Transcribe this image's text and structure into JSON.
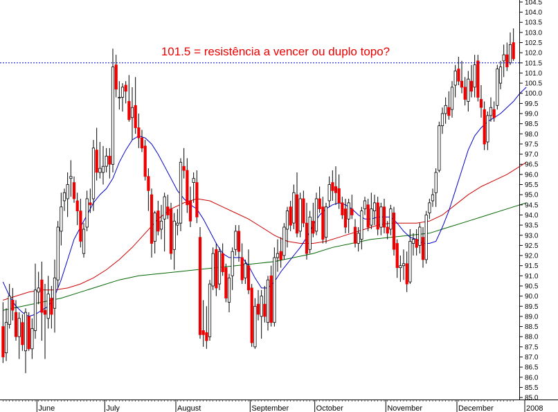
{
  "chart_data": {
    "type": "candlestick",
    "annotation": "101.5 = resistência a vencer ou duplo topo?",
    "resistance_level": 101.5,
    "ylim": [
      84.9,
      104.6
    ],
    "y_ticks": [
      85.0,
      85.5,
      86.0,
      86.5,
      87.0,
      87.5,
      88.0,
      88.5,
      89.0,
      89.5,
      90.0,
      90.5,
      91.0,
      91.5,
      92.0,
      92.5,
      93.0,
      93.5,
      94.0,
      94.5,
      95.0,
      95.5,
      96.0,
      96.5,
      97.0,
      97.5,
      98.0,
      98.5,
      99.0,
      99.5,
      100.0,
      100.5,
      101.0,
      101.5,
      102.0,
      102.5,
      103.0,
      103.5,
      104.0,
      104.5
    ],
    "months": [
      "June",
      "July",
      "August",
      "September",
      "October",
      "November",
      "December",
      "2008"
    ],
    "month_bar_index": [
      11,
      32,
      54,
      77,
      97,
      119,
      141,
      162
    ],
    "colors": {
      "up_candle": "#ffffff",
      "down_candle": "#ee0000",
      "wick": "#000000",
      "ma_short": "#0000cc",
      "ma_medium": "#cc0000",
      "ma_long": "#006600",
      "resistance_line": "#0000cc",
      "annotation": "#ee0000"
    },
    "candles": [
      [
        88.5,
        89.7,
        86.7,
        87.0
      ],
      [
        87.2,
        89.4,
        86.8,
        88.7
      ],
      [
        88.6,
        90.6,
        88.4,
        90.0
      ],
      [
        89.8,
        90.4,
        88.8,
        89.3
      ],
      [
        89.2,
        89.8,
        87.8,
        88.0
      ],
      [
        88.0,
        89.2,
        86.9,
        88.9
      ],
      [
        88.7,
        89.1,
        87.3,
        87.6
      ],
      [
        87.3,
        89.4,
        86.2,
        89.2
      ],
      [
        89.0,
        89.2,
        87.3,
        87.4
      ],
      [
        87.4,
        88.9,
        86.9,
        88.4
      ],
      [
        88.3,
        91.6,
        87.9,
        90.3
      ],
      [
        90.2,
        91.2,
        89.6,
        90.4
      ],
      [
        90.8,
        91.7,
        87.8,
        89.2
      ],
      [
        89.3,
        90.6,
        86.9,
        89.1
      ],
      [
        88.9,
        91.0,
        88.4,
        90.1
      ],
      [
        89.9,
        90.5,
        88.4,
        89.1
      ],
      [
        89.4,
        91.8,
        88.2,
        90.9
      ],
      [
        90.8,
        93.7,
        90.4,
        93.4
      ],
      [
        93.2,
        95.1,
        92.5,
        94.4
      ],
      [
        94.7,
        95.3,
        94.2,
        95.1
      ],
      [
        94.8,
        96.1,
        93.9,
        95.5
      ],
      [
        95.8,
        96.7,
        94.9,
        95.9
      ],
      [
        95.6,
        95.9,
        94.6,
        94.8
      ],
      [
        94.7,
        95.1,
        93.5,
        94.2
      ],
      [
        94.2,
        94.8,
        92.4,
        92.7
      ],
      [
        92.1,
        93.6,
        91.9,
        93.3
      ],
      [
        93.4,
        95.2,
        93.2,
        94.8
      ],
      [
        94.6,
        95.3,
        94.1,
        94.5
      ],
      [
        94.8,
        97.7,
        94.2,
        97.3
      ],
      [
        97.2,
        98.3,
        95.7,
        96.1
      ],
      [
        96.1,
        97.6,
        95.8,
        96.3
      ],
      [
        96.1,
        97.4,
        95.5,
        96.4
      ],
      [
        96.4,
        97.3,
        96.1,
        96.9
      ],
      [
        96.9,
        97.3,
        95.8,
        96.5
      ],
      [
        96.5,
        102.2,
        96.1,
        101.3
      ],
      [
        101.4,
        101.9,
        99.8,
        100.2
      ],
      [
        99.8,
        100.6,
        99.2,
        99.8
      ],
      [
        99.8,
        100.5,
        99.1,
        100.3
      ],
      [
        100.4,
        100.6,
        99.5,
        100.1
      ],
      [
        99.6,
        100.9,
        98.6,
        98.7
      ],
      [
        98.8,
        100.3,
        97.7,
        99.3
      ],
      [
        99.4,
        100.8,
        98.0,
        98.3
      ],
      [
        98.3,
        99.0,
        97.3,
        97.8
      ],
      [
        97.8,
        98.2,
        97.1,
        97.3
      ],
      [
        97.4,
        97.7,
        95.7,
        95.9
      ],
      [
        95.9,
        96.3,
        94.2,
        95.2
      ],
      [
        95.0,
        95.3,
        91.9,
        92.6
      ],
      [
        92.7,
        94.2,
        92.1,
        94.1
      ],
      [
        94.2,
        94.7,
        93.0,
        93.2
      ],
      [
        93.3,
        94.5,
        92.8,
        93.7
      ],
      [
        93.8,
        95.1,
        92.2,
        94.9
      ],
      [
        94.4,
        95.0,
        93.8,
        94.0
      ],
      [
        94.3,
        94.6,
        91.8,
        92.1
      ],
      [
        92.3,
        94.1,
        91.3,
        93.7
      ],
      [
        93.5,
        94.3,
        93.0,
        93.6
      ],
      [
        93.6,
        96.8,
        93.2,
        96.6
      ],
      [
        96.4,
        97.3,
        95.8,
        96.2
      ],
      [
        96.2,
        96.8,
        94.1,
        94.5
      ],
      [
        94.7,
        95.4,
        93.4,
        93.7
      ],
      [
        95.6,
        96.1,
        94.6,
        95.8
      ],
      [
        95.6,
        96.2,
        93.6,
        93.9
      ],
      [
        92.9,
        93.4,
        87.9,
        88.1
      ],
      [
        88.3,
        89.8,
        87.5,
        88.1
      ],
      [
        88.2,
        89.5,
        87.4,
        87.8
      ],
      [
        88.0,
        90.8,
        87.8,
        90.6
      ],
      [
        90.5,
        92.4,
        90.3,
        92.1
      ],
      [
        92.3,
        92.6,
        90.0,
        90.4
      ],
      [
        90.6,
        92.4,
        90.3,
        92.2
      ],
      [
        92.1,
        92.6,
        91.0,
        91.2
      ],
      [
        91.4,
        91.6,
        89.7,
        89.9
      ],
      [
        89.7,
        91.1,
        89.2,
        90.9
      ],
      [
        91.0,
        92.4,
        90.3,
        92.2
      ],
      [
        92.3,
        93.5,
        92.0,
        93.2
      ],
      [
        93.2,
        93.5,
        91.7,
        92.2
      ],
      [
        91.9,
        92.6,
        90.6,
        90.8
      ],
      [
        90.9,
        91.8,
        90.6,
        91.6
      ],
      [
        91.5,
        92.3,
        90.1,
        90.3
      ],
      [
        90.4,
        90.6,
        87.5,
        87.7
      ],
      [
        87.5,
        89.9,
        87.4,
        89.5
      ],
      [
        89.6,
        90.3,
        88.8,
        89.1
      ],
      [
        89.0,
        90.3,
        87.9,
        90.0
      ],
      [
        89.6,
        90.5,
        88.7,
        89.0
      ],
      [
        88.7,
        91.0,
        88.3,
        90.8
      ],
      [
        91.0,
        91.5,
        88.5,
        88.7
      ],
      [
        88.7,
        92.4,
        88.5,
        91.9
      ],
      [
        91.9,
        92.8,
        91.2,
        92.1
      ],
      [
        92.2,
        92.9,
        91.4,
        91.8
      ],
      [
        92.0,
        93.6,
        91.8,
        93.4
      ],
      [
        93.3,
        94.4,
        92.4,
        94.2
      ],
      [
        94.4,
        94.7,
        93.2,
        93.5
      ],
      [
        93.6,
        95.5,
        93.3,
        95.1
      ],
      [
        95.0,
        96.1,
        92.9,
        93.1
      ],
      [
        93.2,
        95.1,
        92.9,
        94.8
      ],
      [
        94.8,
        95.2,
        93.4,
        93.6
      ],
      [
        93.6,
        94.6,
        91.8,
        92.1
      ],
      [
        92.3,
        94.2,
        92.1,
        93.9
      ],
      [
        93.7,
        94.6,
        92.9,
        93.1
      ],
      [
        93.2,
        95.1,
        93.0,
        94.8
      ],
      [
        94.8,
        95.4,
        94.1,
        94.3
      ],
      [
        94.4,
        94.9,
        92.6,
        92.8
      ],
      [
        92.9,
        94.6,
        92.6,
        94.4
      ],
      [
        94.7,
        95.9,
        94.4,
        95.5
      ],
      [
        95.6,
        96.2,
        94.7,
        95.2
      ],
      [
        95.4,
        96.4,
        94.5,
        95.1
      ],
      [
        95.3,
        96.0,
        94.3,
        94.6
      ],
      [
        94.6,
        94.9,
        93.8,
        94.0
      ],
      [
        94.3,
        94.8,
        93.1,
        93.4
      ],
      [
        93.8,
        94.8,
        93.1,
        94.6
      ],
      [
        94.3,
        95.0,
        93.8,
        94.0
      ],
      [
        93.4,
        93.8,
        92.4,
        92.6
      ],
      [
        92.6,
        93.4,
        92.2,
        93.1
      ],
      [
        92.8,
        94.4,
        92.3,
        94.2
      ],
      [
        94.3,
        94.9,
        94.0,
        94.7
      ],
      [
        94.5,
        94.8,
        93.2,
        93.4
      ],
      [
        93.5,
        95.1,
        93.3,
        94.3
      ],
      [
        94.2,
        95.0,
        93.5,
        94.6
      ],
      [
        94.6,
        94.9,
        93.0,
        93.3
      ],
      [
        93.4,
        94.6,
        93.0,
        94.4
      ],
      [
        94.4,
        94.8,
        93.1,
        93.4
      ],
      [
        93.4,
        93.7,
        92.8,
        93.1
      ],
      [
        93.3,
        94.5,
        93.0,
        94.3
      ],
      [
        94.1,
        94.4,
        92.0,
        92.3
      ],
      [
        92.6,
        92.8,
        90.9,
        91.4
      ],
      [
        91.4,
        92.0,
        90.7,
        91.5
      ],
      [
        91.5,
        92.3,
        90.8,
        91.6
      ],
      [
        91.6,
        92.2,
        90.2,
        90.6
      ],
      [
        90.7,
        93.3,
        90.6,
        92.7
      ],
      [
        92.6,
        93.1,
        92.0,
        92.8
      ],
      [
        92.8,
        93.3,
        92.0,
        92.4
      ],
      [
        92.5,
        93.6,
        92.1,
        93.4
      ],
      [
        92.9,
        93.4,
        91.4,
        91.8
      ],
      [
        91.8,
        94.2,
        91.6,
        94.0
      ],
      [
        94.1,
        94.8,
        93.8,
        94.6
      ],
      [
        94.7,
        95.3,
        94.4,
        95.0
      ],
      [
        95.1,
        96.3,
        94.4,
        96.1
      ],
      [
        96.2,
        98.6,
        96.1,
        98.4
      ],
      [
        98.4,
        99.3,
        98.0,
        99.0
      ],
      [
        99.0,
        99.8,
        98.5,
        99.4
      ],
      [
        99.3,
        100.1,
        98.7,
        98.9
      ],
      [
        99.2,
        100.6,
        98.8,
        100.3
      ],
      [
        100.4,
        101.4,
        99.8,
        101.1
      ],
      [
        101.2,
        101.8,
        100.4,
        100.6
      ],
      [
        100.6,
        101.6,
        100.0,
        100.3
      ],
      [
        100.3,
        100.8,
        99.4,
        99.7
      ],
      [
        99.6,
        101.1,
        99.1,
        100.7
      ],
      [
        100.6,
        101.4,
        99.8,
        100.1
      ],
      [
        100.3,
        101.9,
        99.8,
        101.4
      ],
      [
        101.6,
        101.9,
        99.6,
        99.8
      ],
      [
        99.7,
        100.4,
        98.8,
        99.3
      ],
      [
        99.2,
        99.6,
        97.2,
        97.5
      ],
      [
        97.6,
        99.1,
        97.2,
        98.9
      ],
      [
        98.9,
        99.8,
        98.6,
        99.3
      ],
      [
        99.2,
        99.6,
        98.6,
        98.8
      ],
      [
        99.4,
        101.4,
        99.2,
        101.2
      ],
      [
        100.5,
        101.6,
        100.2,
        101.3
      ],
      [
        101.6,
        102.4,
        100.8,
        101.9
      ],
      [
        101.9,
        102.5,
        101.1,
        101.3
      ],
      [
        101.5,
        103.0,
        101.4,
        102.4
      ],
      [
        102.5,
        103.2,
        101.6,
        101.7
      ]
    ],
    "ma_short": [
      [
        0,
        90.7
      ],
      [
        2,
        90.0
      ],
      [
        4,
        89.5
      ],
      [
        6,
        89.2
      ],
      [
        8,
        89.0
      ],
      [
        10,
        89.1
      ],
      [
        12,
        89.3
      ],
      [
        14,
        89.5
      ],
      [
        16,
        90.0
      ],
      [
        18,
        90.8
      ],
      [
        20,
        91.8
      ],
      [
        22,
        92.8
      ],
      [
        24,
        93.4
      ],
      [
        26,
        94.0
      ],
      [
        28,
        94.6
      ],
      [
        30,
        95.0
      ],
      [
        32,
        95.3
      ],
      [
        34,
        95.8
      ],
      [
        36,
        96.6
      ],
      [
        38,
        97.2
      ],
      [
        40,
        97.7
      ],
      [
        42,
        97.9
      ],
      [
        44,
        97.8
      ],
      [
        46,
        97.5
      ],
      [
        48,
        97.0
      ],
      [
        50,
        96.4
      ],
      [
        52,
        95.8
      ],
      [
        54,
        95.2
      ],
      [
        56,
        94.8
      ],
      [
        58,
        94.5
      ],
      [
        60,
        94.3
      ],
      [
        62,
        93.8
      ],
      [
        64,
        93.2
      ],
      [
        66,
        92.6
      ],
      [
        68,
        92.1
      ],
      [
        70,
        91.9
      ],
      [
        72,
        91.9
      ],
      [
        74,
        91.9
      ],
      [
        76,
        91.5
      ],
      [
        78,
        90.9
      ],
      [
        80,
        90.4
      ],
      [
        82,
        90.4
      ],
      [
        84,
        90.7
      ],
      [
        86,
        91.2
      ],
      [
        88,
        91.6
      ],
      [
        90,
        92.0
      ],
      [
        92,
        92.4
      ],
      [
        94,
        92.9
      ],
      [
        96,
        93.5
      ],
      [
        98,
        94.0
      ],
      [
        100,
        94.3
      ],
      [
        102,
        94.5
      ],
      [
        104,
        94.6
      ],
      [
        106,
        94.5
      ],
      [
        108,
        94.3
      ],
      [
        110,
        94.0
      ],
      [
        112,
        93.8
      ],
      [
        114,
        93.8
      ],
      [
        116,
        93.9
      ],
      [
        118,
        93.9
      ],
      [
        120,
        93.9
      ],
      [
        122,
        93.6
      ],
      [
        124,
        93.2
      ],
      [
        126,
        92.9
      ],
      [
        128,
        92.8
      ],
      [
        130,
        92.6
      ],
      [
        132,
        92.6
      ],
      [
        134,
        92.7
      ],
      [
        136,
        93.4
      ],
      [
        138,
        94.2
      ],
      [
        140,
        95.2
      ],
      [
        142,
        96.2
      ],
      [
        144,
        97.2
      ],
      [
        146,
        97.9
      ],
      [
        148,
        98.3
      ],
      [
        150,
        98.6
      ],
      [
        152,
        98.8
      ],
      [
        154,
        99.0
      ],
      [
        156,
        99.3
      ],
      [
        158,
        99.6
      ],
      [
        160,
        100.0
      ],
      [
        162,
        100.3
      ]
    ],
    "ma_medium": [
      [
        0,
        89.8
      ],
      [
        4,
        90.0
      ],
      [
        8,
        90.2
      ],
      [
        12,
        90.3
      ],
      [
        16,
        90.3
      ],
      [
        20,
        90.4
      ],
      [
        24,
        90.6
      ],
      [
        28,
        90.9
      ],
      [
        32,
        91.3
      ],
      [
        36,
        91.8
      ],
      [
        40,
        92.4
      ],
      [
        44,
        93.1
      ],
      [
        48,
        93.8
      ],
      [
        52,
        94.3
      ],
      [
        56,
        94.6
      ],
      [
        60,
        94.8
      ],
      [
        64,
        94.7
      ],
      [
        68,
        94.4
      ],
      [
        72,
        94.1
      ],
      [
        76,
        93.8
      ],
      [
        80,
        93.4
      ],
      [
        84,
        93.0
      ],
      [
        88,
        92.7
      ],
      [
        92,
        92.6
      ],
      [
        96,
        92.6
      ],
      [
        100,
        92.7
      ],
      [
        104,
        92.9
      ],
      [
        108,
        93.1
      ],
      [
        112,
        93.3
      ],
      [
        116,
        93.5
      ],
      [
        120,
        93.6
      ],
      [
        124,
        93.6
      ],
      [
        128,
        93.6
      ],
      [
        132,
        93.7
      ],
      [
        136,
        94.0
      ],
      [
        140,
        94.5
      ],
      [
        144,
        95.0
      ],
      [
        148,
        95.4
      ],
      [
        152,
        95.7
      ],
      [
        156,
        96.0
      ],
      [
        160,
        96.4
      ],
      [
        162,
        96.6
      ]
    ],
    "ma_long": [
      [
        0,
        89.3
      ],
      [
        6,
        89.5
      ],
      [
        12,
        89.7
      ],
      [
        18,
        89.9
      ],
      [
        24,
        90.2
      ],
      [
        30,
        90.5
      ],
      [
        36,
        90.8
      ],
      [
        42,
        91.0
      ],
      [
        48,
        91.1
      ],
      [
        54,
        91.2
      ],
      [
        60,
        91.3
      ],
      [
        66,
        91.4
      ],
      [
        72,
        91.5
      ],
      [
        78,
        91.6
      ],
      [
        84,
        91.7
      ],
      [
        90,
        91.9
      ],
      [
        96,
        92.1
      ],
      [
        102,
        92.4
      ],
      [
        108,
        92.6
      ],
      [
        114,
        92.8
      ],
      [
        120,
        92.9
      ],
      [
        126,
        93.0
      ],
      [
        132,
        93.1
      ],
      [
        138,
        93.4
      ],
      [
        144,
        93.7
      ],
      [
        150,
        94.0
      ],
      [
        156,
        94.3
      ],
      [
        162,
        94.6
      ]
    ]
  }
}
